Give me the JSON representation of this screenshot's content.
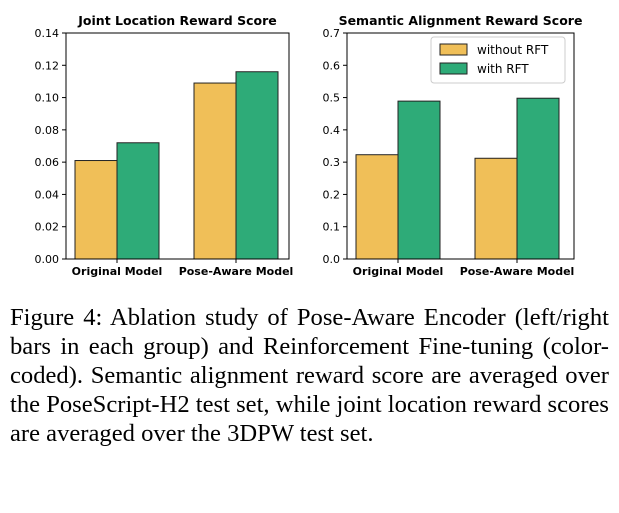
{
  "chart_data": [
    {
      "type": "bar",
      "title": "Joint Location Reward Score",
      "categories": [
        "Original Model",
        "Pose-Aware Model"
      ],
      "series": [
        {
          "name": "without RFT",
          "values": [
            0.061,
            0.109
          ]
        },
        {
          "name": "with RFT",
          "values": [
            0.072,
            0.116
          ]
        }
      ],
      "ylim": [
        0,
        0.14
      ],
      "yticks": [
        "0.00",
        "0.02",
        "0.04",
        "0.06",
        "0.08",
        "0.10",
        "0.12",
        "0.14"
      ],
      "ytick_values": [
        0,
        0.02,
        0.04,
        0.06,
        0.08,
        0.1,
        0.12,
        0.14
      ],
      "grid": false,
      "legend": null
    },
    {
      "type": "bar",
      "title": "Semantic Alignment Reward Score",
      "categories": [
        "Original Model",
        "Pose-Aware Model"
      ],
      "series": [
        {
          "name": "without RFT",
          "values": [
            0.323,
            0.312
          ]
        },
        {
          "name": "with RFT",
          "values": [
            0.489,
            0.498
          ]
        }
      ],
      "ylim": [
        0,
        0.7
      ],
      "yticks": [
        "0.0",
        "0.1",
        "0.2",
        "0.3",
        "0.4",
        "0.5",
        "0.6",
        "0.7"
      ],
      "ytick_values": [
        0,
        0.1,
        0.2,
        0.3,
        0.4,
        0.5,
        0.6,
        0.7
      ],
      "grid": false,
      "legend": "top-right"
    }
  ],
  "colors": {
    "without_rft": "#f0bf58",
    "with_rft": "#2eab78",
    "edge": "#222222"
  },
  "caption": "Figure 4: Ablation study of Pose-Aware Encoder (left/right bars in each group) and Reinforcement Fine-tuning (color-coded). Semantic alignment reward score are averaged over the PoseScript-H2 test set, while joint location reward scores are averaged over the 3DPW test set."
}
